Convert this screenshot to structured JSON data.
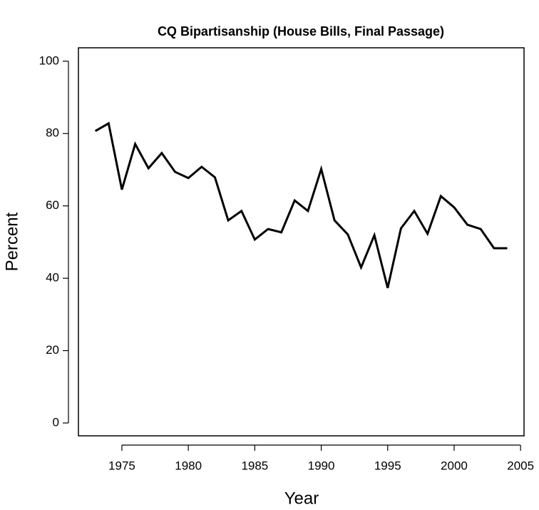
{
  "chart_data": {
    "type": "line",
    "title": "CQ Bipartisanship (House Bills, Final Passage)",
    "xlabel": "Year",
    "ylabel": "Percent",
    "x": [
      1973,
      1974,
      1975,
      1976,
      1977,
      1978,
      1979,
      1980,
      1981,
      1982,
      1983,
      1984,
      1985,
      1986,
      1987,
      1988,
      1989,
      1990,
      1991,
      1992,
      1993,
      1994,
      1995,
      1996,
      1997,
      1998,
      1999,
      2000,
      2001,
      2002,
      2003,
      2004
    ],
    "series": [
      {
        "name": "CQ Bipartisanship",
        "color": "#000000",
        "values": [
          80.7,
          82.8,
          64.5,
          77.1,
          70.4,
          74.6,
          69.4,
          67.7,
          70.8,
          67.9,
          56.0,
          58.6,
          50.7,
          53.6,
          52.7,
          61.5,
          58.6,
          70.2,
          56.0,
          52.1,
          43.0,
          51.9,
          37.3,
          53.8,
          58.6,
          52.3,
          62.7,
          59.6,
          54.8,
          53.6,
          48.3,
          48.3
        ]
      }
    ],
    "xlim": [
      1971.73,
      2005.26
    ],
    "ylim": [
      -3.55,
      103.7
    ],
    "xticks": [
      1975,
      1980,
      1985,
      1990,
      1995,
      2000,
      2005
    ],
    "yticks": [
      0,
      20,
      40,
      60,
      80,
      100
    ]
  }
}
